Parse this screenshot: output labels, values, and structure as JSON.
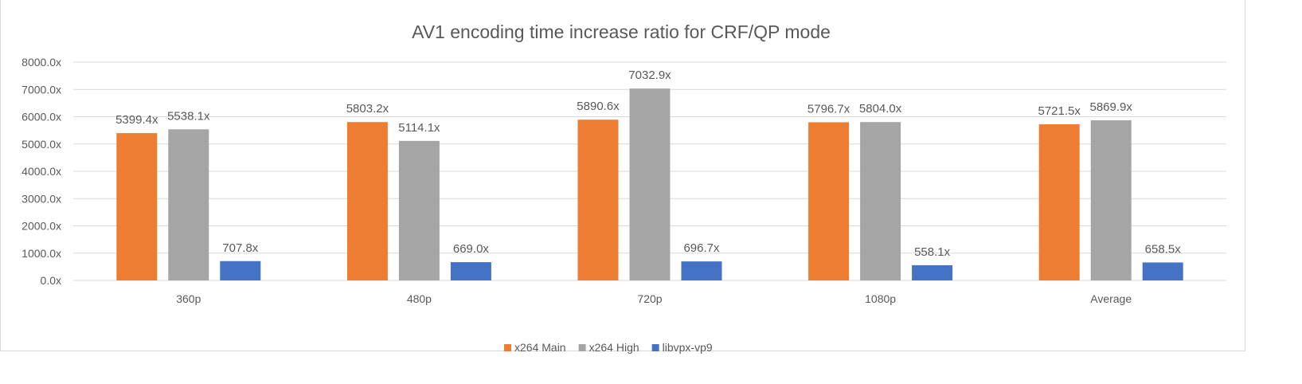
{
  "chart_data": {
    "type": "bar",
    "title": "AV1 encoding time increase ratio for CRF/QP mode",
    "xlabel": "",
    "ylabel": "",
    "categories": [
      "360p",
      "480p",
      "720p",
      "1080p",
      "Average"
    ],
    "series": [
      {
        "name": "x264 Main",
        "color": "#ED7D31",
        "values": [
          5399.4,
          5803.2,
          5890.6,
          5796.7,
          5721.5
        ]
      },
      {
        "name": "x264 High",
        "color": "#A5A5A5",
        "values": [
          5538.1,
          5114.1,
          7032.9,
          5804.0,
          5869.9
        ]
      },
      {
        "name": "libvpx-vp9",
        "color": "#4472C4",
        "values": [
          707.8,
          669.0,
          696.7,
          558.1,
          658.5
        ]
      }
    ],
    "ylim": [
      0,
      8000
    ],
    "yticks": [
      0,
      1000,
      2000,
      3000,
      4000,
      5000,
      6000,
      7000,
      8000
    ],
    "tick_format_suffix": "x",
    "data_labels": true,
    "grid": true,
    "legend": "bottom"
  }
}
